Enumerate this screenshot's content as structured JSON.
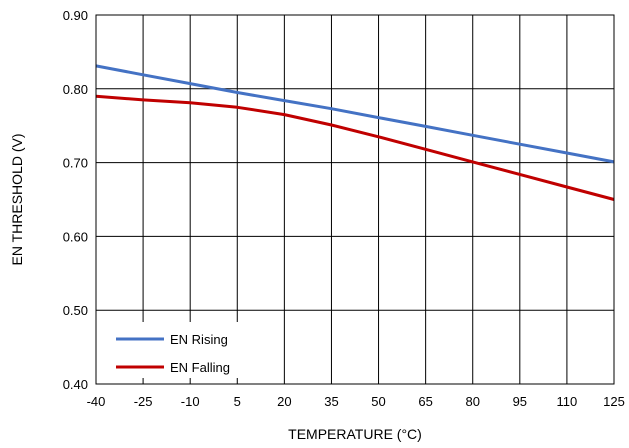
{
  "chart_data": {
    "type": "line",
    "xlabel": "TEMPERATURE (°C)",
    "ylabel": "EN THRESHOLD (V)",
    "xlim": [
      -40,
      125
    ],
    "ylim": [
      0.4,
      0.9
    ],
    "x_ticks": [
      -40,
      -25,
      -10,
      5,
      20,
      35,
      50,
      65,
      80,
      95,
      110,
      125
    ],
    "y_ticks": [
      0.4,
      0.5,
      0.6,
      0.7,
      0.8,
      0.9
    ],
    "x_tick_labels": [
      "-40",
      "-25",
      "-10",
      "5",
      "20",
      "35",
      "50",
      "65",
      "80",
      "95",
      "110",
      "125"
    ],
    "y_tick_labels": [
      "0.40",
      "0.50",
      "0.60",
      "0.70",
      "0.80",
      "0.90"
    ],
    "grid": true,
    "legend_position": "bottom-left",
    "series": [
      {
        "name": "EN Rising",
        "color": "#4472c4",
        "x": [
          -40,
          -25,
          -10,
          5,
          20,
          35,
          50,
          65,
          80,
          95,
          110,
          125
        ],
        "y": [
          0.831,
          0.819,
          0.807,
          0.795,
          0.784,
          0.773,
          0.761,
          0.749,
          0.737,
          0.725,
          0.713,
          0.701
        ]
      },
      {
        "name": "EN Falling",
        "color": "#c00000",
        "x": [
          -40,
          -25,
          -10,
          5,
          20,
          35,
          50,
          65,
          80,
          95,
          110,
          125
        ],
        "y": [
          0.79,
          0.785,
          0.781,
          0.775,
          0.765,
          0.751,
          0.735,
          0.718,
          0.701,
          0.684,
          0.667,
          0.65
        ]
      }
    ]
  }
}
